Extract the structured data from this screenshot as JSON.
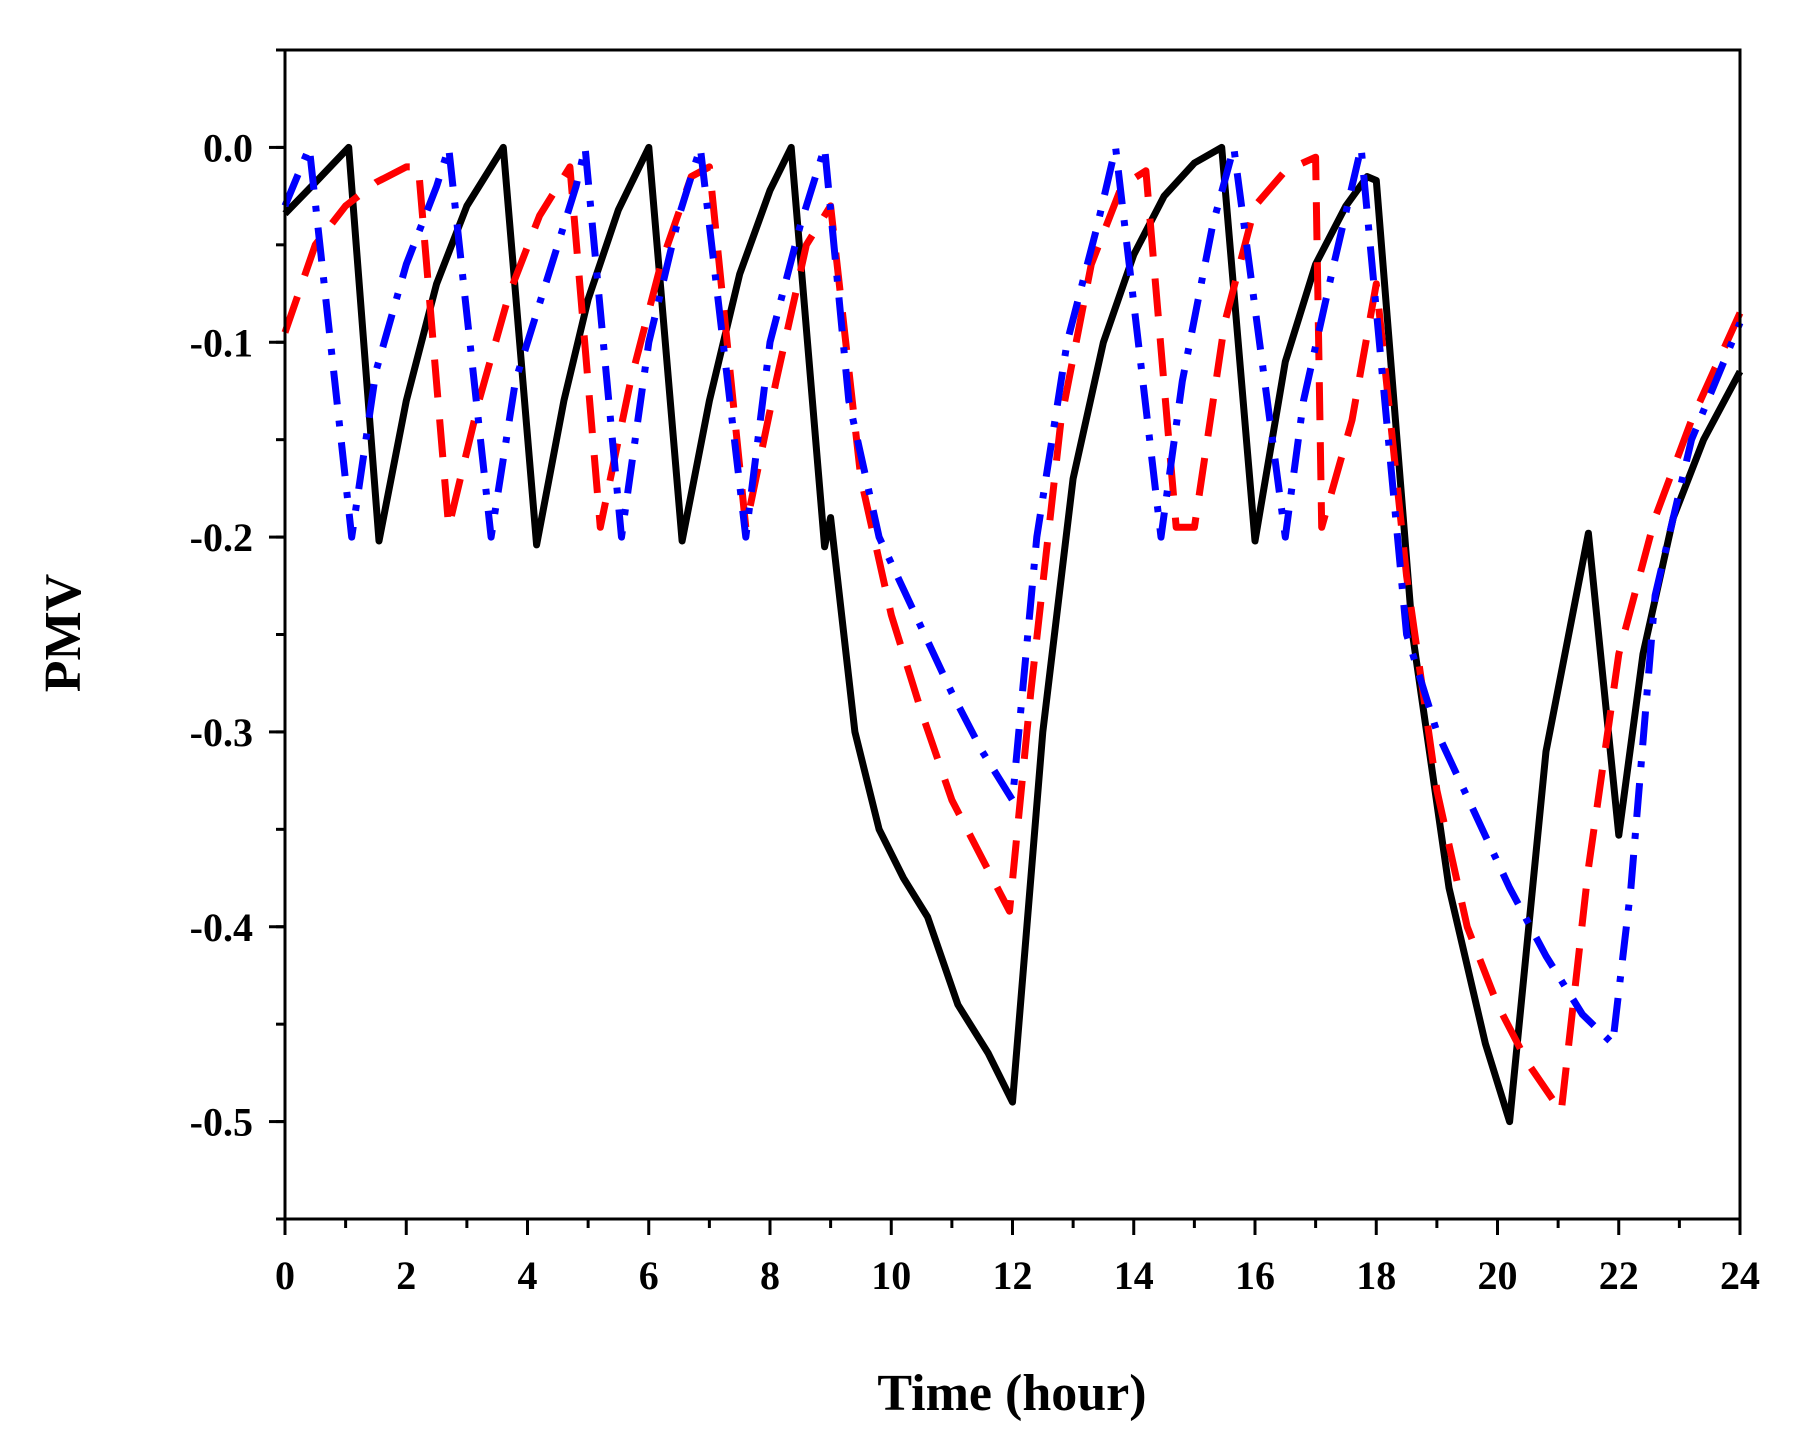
{
  "chart_data": {
    "type": "line",
    "title": "",
    "xlabel": "Time (hour)",
    "ylabel": "PMV",
    "xlim": [
      0,
      24
    ],
    "ylim": [
      -0.55,
      0.05
    ],
    "x_ticks": [
      0,
      2,
      4,
      6,
      8,
      10,
      12,
      14,
      16,
      18,
      20,
      22,
      24
    ],
    "x_tick_labels": [
      "0",
      "2",
      "4",
      "6",
      "8",
      "10",
      "12",
      "14",
      "16",
      "18",
      "20",
      "22",
      "24"
    ],
    "y_ticks": [
      0.0,
      -0.1,
      -0.2,
      -0.3,
      -0.4,
      -0.5
    ],
    "y_tick_labels": [
      "0.0",
      "-0.1",
      "-0.2",
      "-0.3",
      "-0.4",
      "-0.5"
    ],
    "grid": false,
    "legend": "none",
    "series": [
      {
        "name": "solid-black",
        "color": "#000000",
        "style": "solid",
        "points": [
          [
            0,
            -0.034
          ],
          [
            0.5,
            -0.018
          ],
          [
            1.05,
            0.0
          ],
          [
            1.55,
            -0.202
          ],
          [
            2.0,
            -0.13
          ],
          [
            2.5,
            -0.07
          ],
          [
            3.0,
            -0.03
          ],
          [
            3.6,
            0.0
          ],
          [
            4.15,
            -0.204
          ],
          [
            4.6,
            -0.13
          ],
          [
            5.0,
            -0.078
          ],
          [
            5.5,
            -0.032
          ],
          [
            6.0,
            0.0
          ],
          [
            6.55,
            -0.202
          ],
          [
            7.0,
            -0.13
          ],
          [
            7.5,
            -0.065
          ],
          [
            8.0,
            -0.022
          ],
          [
            8.35,
            0.0
          ],
          [
            8.9,
            -0.205
          ],
          [
            9.0,
            -0.19
          ],
          [
            9.4,
            -0.3
          ],
          [
            9.8,
            -0.35
          ],
          [
            10.2,
            -0.375
          ],
          [
            10.6,
            -0.395
          ],
          [
            11.1,
            -0.44
          ],
          [
            11.6,
            -0.465
          ],
          [
            12.0,
            -0.49
          ],
          [
            12.5,
            -0.3
          ],
          [
            13.0,
            -0.17
          ],
          [
            13.5,
            -0.1
          ],
          [
            14.0,
            -0.055
          ],
          [
            14.5,
            -0.025
          ],
          [
            15.0,
            -0.008
          ],
          [
            15.45,
            0.0
          ],
          [
            16.0,
            -0.202
          ],
          [
            16.5,
            -0.11
          ],
          [
            17.0,
            -0.06
          ],
          [
            17.5,
            -0.03
          ],
          [
            17.85,
            -0.015
          ],
          [
            18.0,
            -0.017
          ],
          [
            18.6,
            -0.25
          ],
          [
            19.2,
            -0.38
          ],
          [
            19.8,
            -0.46
          ],
          [
            20.2,
            -0.5
          ],
          [
            20.8,
            -0.31
          ],
          [
            21.5,
            -0.198
          ],
          [
            22.0,
            -0.353
          ],
          [
            22.4,
            -0.26
          ],
          [
            22.9,
            -0.19
          ],
          [
            23.4,
            -0.15
          ],
          [
            24.0,
            -0.115
          ]
        ]
      },
      {
        "name": "dashed-red",
        "color": "#ff0000",
        "style": "dash",
        "points": [
          [
            0,
            -0.095
          ],
          [
            0.5,
            -0.05
          ],
          [
            1.0,
            -0.03
          ],
          [
            1.5,
            -0.018
          ],
          [
            2.0,
            -0.01
          ],
          [
            2.2,
            -0.01
          ],
          [
            2.7,
            -0.195
          ],
          [
            3.2,
            -0.13
          ],
          [
            3.7,
            -0.075
          ],
          [
            4.2,
            -0.035
          ],
          [
            4.7,
            -0.01
          ],
          [
            5.2,
            -0.195
          ],
          [
            5.7,
            -0.12
          ],
          [
            6.2,
            -0.06
          ],
          [
            6.7,
            -0.015
          ],
          [
            7.0,
            -0.01
          ],
          [
            7.6,
            -0.195
          ],
          [
            8.1,
            -0.12
          ],
          [
            8.6,
            -0.05
          ],
          [
            9.0,
            -0.03
          ],
          [
            9.5,
            -0.17
          ],
          [
            10.0,
            -0.24
          ],
          [
            10.5,
            -0.29
          ],
          [
            11.0,
            -0.335
          ],
          [
            11.5,
            -0.365
          ],
          [
            11.95,
            -0.392
          ],
          [
            12.3,
            -0.28
          ],
          [
            12.8,
            -0.14
          ],
          [
            13.3,
            -0.06
          ],
          [
            13.8,
            -0.02
          ],
          [
            14.2,
            -0.012
          ],
          [
            14.7,
            -0.195
          ],
          [
            15.0,
            -0.195
          ],
          [
            15.5,
            -0.09
          ],
          [
            16.0,
            -0.03
          ],
          [
            16.5,
            -0.012
          ],
          [
            17.0,
            -0.005
          ],
          [
            17.1,
            -0.195
          ],
          [
            17.6,
            -0.14
          ],
          [
            18.0,
            -0.07
          ],
          [
            18.5,
            -0.22
          ],
          [
            19.0,
            -0.33
          ],
          [
            19.5,
            -0.4
          ],
          [
            20.0,
            -0.44
          ],
          [
            20.5,
            -0.47
          ],
          [
            21.05,
            -0.495
          ],
          [
            21.5,
            -0.37
          ],
          [
            22.0,
            -0.26
          ],
          [
            22.6,
            -0.19
          ],
          [
            23.2,
            -0.14
          ],
          [
            24.0,
            -0.085
          ]
        ]
      },
      {
        "name": "dash-dot-blue",
        "color": "#0000ff",
        "style": "dashdot",
        "points": [
          [
            0,
            -0.03
          ],
          [
            0.4,
            0.0
          ],
          [
            1.1,
            -0.2
          ],
          [
            1.5,
            -0.115
          ],
          [
            2.0,
            -0.06
          ],
          [
            2.5,
            -0.02
          ],
          [
            2.7,
            0.0
          ],
          [
            3.4,
            -0.2
          ],
          [
            3.8,
            -0.12
          ],
          [
            4.3,
            -0.07
          ],
          [
            4.8,
            -0.02
          ],
          [
            4.95,
            0.0
          ],
          [
            5.55,
            -0.2
          ],
          [
            6.0,
            -0.1
          ],
          [
            6.5,
            -0.035
          ],
          [
            6.85,
            0.0
          ],
          [
            7.6,
            -0.2
          ],
          [
            8.0,
            -0.1
          ],
          [
            8.5,
            -0.04
          ],
          [
            8.9,
            0.0
          ],
          [
            9.3,
            -0.13
          ],
          [
            9.8,
            -0.2
          ],
          [
            10.4,
            -0.24
          ],
          [
            11.0,
            -0.28
          ],
          [
            11.5,
            -0.31
          ],
          [
            12.0,
            -0.335
          ],
          [
            12.4,
            -0.2
          ],
          [
            12.9,
            -0.1
          ],
          [
            13.4,
            -0.04
          ],
          [
            13.7,
            0.0
          ],
          [
            14.45,
            -0.2
          ],
          [
            14.8,
            -0.12
          ],
          [
            15.3,
            -0.04
          ],
          [
            15.65,
            0.0
          ],
          [
            16.5,
            -0.2
          ],
          [
            16.8,
            -0.13
          ],
          [
            17.3,
            -0.06
          ],
          [
            17.75,
            0.0
          ],
          [
            18.5,
            -0.25
          ],
          [
            19.0,
            -0.3
          ],
          [
            19.6,
            -0.34
          ],
          [
            20.2,
            -0.38
          ],
          [
            20.8,
            -0.415
          ],
          [
            21.4,
            -0.445
          ],
          [
            21.9,
            -0.46
          ],
          [
            22.2,
            -0.38
          ],
          [
            22.6,
            -0.23
          ],
          [
            23.2,
            -0.15
          ],
          [
            24.0,
            -0.09
          ]
        ]
      }
    ]
  }
}
